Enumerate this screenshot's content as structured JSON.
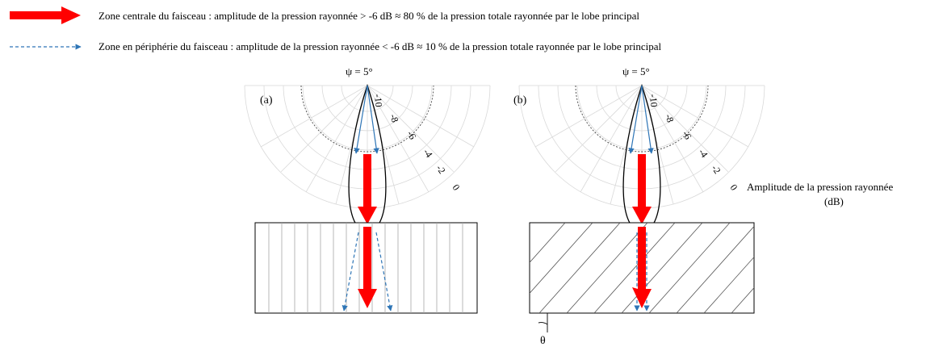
{
  "legend": {
    "central_text": "Zone centrale du faisceau : amplitude de la pression rayonnée > -6 dB ≈ 80 % de la pression totale rayonnée par le lobe principal",
    "periphery_text": "Zone en périphérie du faisceau : amplitude de la pression rayonnée < -6 dB ≈ 10 % de la pression totale rayonnée par le lobe principal"
  },
  "panels": [
    {
      "label": "(a)",
      "psi": "ψ = 5°"
    },
    {
      "label": "(b)",
      "psi": "ψ = 5°"
    }
  ],
  "polar_ticks": [
    "-10",
    "-8",
    "-6",
    "-4",
    "-2",
    "0"
  ],
  "amplitude_label_line1": "Amplitude de la pression rayonnée",
  "amplitude_label_line2": "(dB)",
  "theta_label": "θ",
  "colors": {
    "central_arrow": "#ff0000",
    "periphery_arrow": "#2e75b6",
    "grid": "#d9d9d9"
  }
}
